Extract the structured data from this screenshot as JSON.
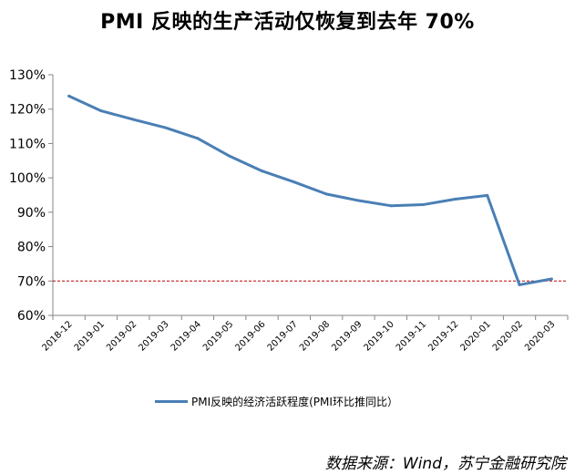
{
  "chart_data": {
    "type": "line",
    "title": "PMI 反映的生产活动仅恢复到去年 70%",
    "categories": [
      "2018-12",
      "2019-01",
      "2019-02",
      "2019-03",
      "2019-04",
      "2019-05",
      "2019-06",
      "2019-07",
      "2019-08",
      "2019-09",
      "2019-10",
      "2019-11",
      "2019-12",
      "2020-01",
      "2020-02",
      "2020-03"
    ],
    "series": [
      {
        "name": "PMI反映的经济活跃程度(PMI环比推同比）",
        "color": "#4a7fb5",
        "values": [
          123.8,
          119.5,
          117.0,
          114.6,
          111.5,
          106.3,
          102.0,
          98.8,
          95.3,
          93.4,
          91.9,
          92.2,
          93.8,
          94.9,
          68.9,
          70.6
        ]
      }
    ],
    "reference_line": {
      "value": 70,
      "color": "#c00000",
      "style": "dashed"
    },
    "ylim": [
      60,
      130
    ],
    "yticks": [
      "60%",
      "70%",
      "80%",
      "90%",
      "100%",
      "110%",
      "120%",
      "130%"
    ],
    "ytick_values": [
      60,
      70,
      80,
      90,
      100,
      110,
      120,
      130
    ],
    "legend_position": "bottom",
    "grid": false
  },
  "source": "数据来源：Wind，苏宁金融研究院"
}
